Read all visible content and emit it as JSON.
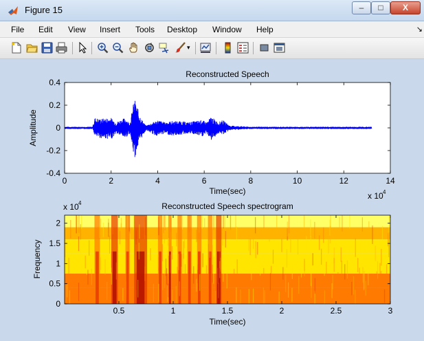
{
  "window": {
    "title": "Figure 15",
    "controls": {
      "minimize": "–",
      "maximize": "□",
      "close": "X"
    }
  },
  "menu": {
    "items": [
      "File",
      "Edit",
      "View",
      "Insert",
      "Tools",
      "Desktop",
      "Window",
      "Help"
    ]
  },
  "toolbar": {
    "icons": [
      "new-figure-icon",
      "open-file-icon",
      "save-icon",
      "print-icon",
      "pointer-icon",
      "zoom-in-icon",
      "zoom-out-icon",
      "pan-icon",
      "rotate-3d-icon",
      "data-cursor-icon",
      "brush-icon",
      "brush-dropdown-icon",
      "link-plot-icon",
      "colorbar-icon",
      "legend-icon",
      "hide-plot-tools-icon",
      "show-plot-tools-icon"
    ]
  },
  "chart_data": [
    {
      "type": "line",
      "title": "Reconstructed Speech",
      "xlabel": "Time(sec)",
      "ylabel": "Amplitude",
      "xlim": [
        0,
        14
      ],
      "ylim": [
        -0.4,
        0.4
      ],
      "x_exponent": "x 10",
      "x_exponent_power": "4",
      "xticks": [
        "0",
        "2",
        "4",
        "6",
        "8",
        "10",
        "12",
        "14"
      ],
      "yticks": [
        "0.4",
        "0.2",
        "0",
        "-0.2",
        "-0.4"
      ],
      "series_color": "#0000ff",
      "envelope": {
        "x": [
          0,
          1.2,
          1.3,
          1.5,
          2.0,
          2.2,
          2.6,
          2.8,
          3.0,
          3.1,
          3.3,
          3.5,
          3.9,
          4.0,
          4.3,
          4.6,
          5.0,
          5.3,
          5.6,
          5.9,
          6.1,
          6.3,
          6.6,
          6.8,
          7.1,
          8,
          13.2
        ],
        "pos": [
          0.01,
          0.01,
          0.09,
          0.08,
          0.09,
          0.05,
          0.09,
          0.04,
          0.26,
          0.2,
          0.08,
          0.02,
          0.06,
          0.07,
          0.05,
          0.06,
          0.06,
          0.05,
          0.06,
          0.07,
          0.05,
          0.1,
          0.05,
          0.07,
          0.02,
          0.01,
          0.01
        ],
        "neg": [
          -0.01,
          -0.01,
          -0.08,
          -0.09,
          -0.1,
          -0.05,
          -0.09,
          -0.05,
          -0.28,
          -0.2,
          -0.09,
          -0.02,
          -0.07,
          -0.07,
          -0.05,
          -0.07,
          -0.06,
          -0.05,
          -0.06,
          -0.08,
          -0.05,
          -0.11,
          -0.05,
          -0.06,
          -0.02,
          -0.01,
          -0.01
        ]
      }
    },
    {
      "type": "heatmap",
      "title": "Reconstructed Speech spectrogram",
      "xlabel": "Time(sec)",
      "ylabel": "Frequency",
      "xlim": [
        0,
        3
      ],
      "ylim": [
        0,
        2.2
      ],
      "y_exponent": "x 10",
      "y_exponent_power": "4",
      "xticks": [
        "0.5",
        "1",
        "1.5",
        "2",
        "2.5",
        "3"
      ],
      "yticks": [
        "2",
        "1.5",
        "1",
        "0.5",
        "0"
      ],
      "colormap": [
        "#ffff66",
        "#ffe500",
        "#ffb300",
        "#ff7a00",
        "#e63b00",
        "#b01000"
      ],
      "bands": [
        {
          "from": 1.9,
          "to": 2.2,
          "level": 0.05
        },
        {
          "from": 1.6,
          "to": 1.9,
          "level": 0.3
        },
        {
          "from": 1.25,
          "to": 1.6,
          "level": 0.25
        },
        {
          "from": 0.75,
          "to": 1.25,
          "level": 0.15
        },
        {
          "from": 0.4,
          "to": 0.75,
          "level": 0.55
        },
        {
          "from": 0.0,
          "to": 0.4,
          "level": 0.62
        }
      ],
      "energy_bursts": [
        {
          "t": 0.3,
          "w": 0.05,
          "level": 0.85
        },
        {
          "t": 0.46,
          "w": 0.06,
          "level": 1.0
        },
        {
          "t": 0.58,
          "w": 0.04,
          "level": 0.7
        },
        {
          "t": 0.7,
          "w": 0.12,
          "level": 1.0
        },
        {
          "t": 0.88,
          "w": 0.04,
          "level": 0.75
        },
        {
          "t": 0.97,
          "w": 0.03,
          "level": 0.9
        },
        {
          "t": 1.06,
          "w": 0.04,
          "level": 0.85
        },
        {
          "t": 1.15,
          "w": 0.04,
          "level": 0.8
        },
        {
          "t": 1.24,
          "w": 0.04,
          "level": 0.8
        },
        {
          "t": 1.34,
          "w": 0.04,
          "level": 0.85
        },
        {
          "t": 1.42,
          "w": 0.05,
          "level": 0.95
        }
      ]
    }
  ]
}
